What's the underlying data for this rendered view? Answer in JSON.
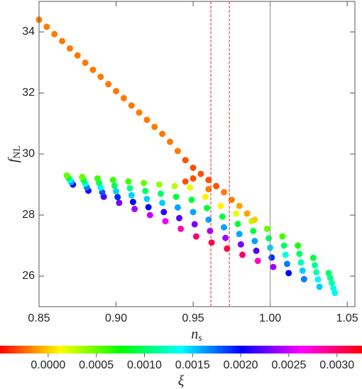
{
  "chart_data": {
    "type": "scatter",
    "xlabel": {
      "text": "n",
      "subscript": "s"
    },
    "ylabel": {
      "text": "f",
      "subscript": "NL"
    },
    "xlim": [
      0.85,
      1.055
    ],
    "ylim": [
      25,
      35
    ],
    "xticks": [
      {
        "value": 0.85,
        "label": "0.85"
      },
      {
        "value": 0.9,
        "label": "0.90"
      },
      {
        "value": 0.95,
        "label": "0.95"
      },
      {
        "value": 1.0,
        "label": "1.00"
      },
      {
        "value": 1.05,
        "label": "1.05"
      }
    ],
    "yticks": [
      26,
      28,
      30,
      32,
      34
    ],
    "reference_lines": [
      {
        "x": 0.9615,
        "color": "#e03030",
        "style": "dashed"
      },
      {
        "x": 0.9735,
        "color": "#e03030",
        "style": "dashed"
      },
      {
        "x": 1.0,
        "color": "#888888",
        "style": "solid"
      }
    ],
    "colormap": "hue",
    "colorbar": {
      "lim": [
        -0.0005,
        0.00326
      ],
      "ticks": [
        {
          "value": 0,
          "label": "0.0000"
        },
        {
          "value": 0.0005,
          "label": "0.0005"
        },
        {
          "value": 0.001,
          "label": "0.0010"
        },
        {
          "value": 0.0015,
          "label": "0.0015"
        },
        {
          "value": 0.002,
          "label": "0.0020"
        },
        {
          "value": 0.0025,
          "label": "0.0025"
        },
        {
          "value": 0.003,
          "label": "0.0030"
        }
      ],
      "label": "ξ"
    },
    "series": [
      {
        "x": [
          0.85,
          0.855,
          0.86,
          0.865,
          0.87,
          0.875,
          0.88,
          0.885,
          0.89,
          0.895,
          0.9,
          0.905,
          0.91,
          0.915,
          0.92,
          0.925,
          0.93,
          0.935,
          0.94,
          0.945,
          0.95,
          0.95,
          0.955,
          0.96,
          0.96,
          0.965,
          0.97,
          0.975,
          0.98,
          0.945,
          0.985,
          0.99,
          0.868,
          0.869,
          0.87,
          0.871,
          0.872,
          0.878,
          0.879,
          0.88,
          0.881,
          0.882,
          0.888,
          0.889,
          0.89,
          0.891,
          0.892,
          0.898,
          0.899,
          0.9,
          0.901,
          0.902,
          0.908,
          0.909,
          0.91,
          0.911,
          0.912,
          0.918,
          0.919,
          0.92,
          0.921,
          0.922,
          0.928,
          0.929,
          0.93,
          0.931,
          0.932,
          0.938,
          0.939,
          0.94,
          0.941,
          0.942,
          0.948,
          0.949,
          0.95,
          0.951,
          0.952,
          0.958,
          0.959,
          0.96,
          0.961,
          0.962,
          0.968,
          0.969,
          0.97,
          0.971,
          0.972,
          0.978,
          0.979,
          0.98,
          0.981,
          0.982,
          0.988,
          0.989,
          0.99,
          0.991,
          0.992,
          0.998,
          0.999,
          1.0,
          1.001,
          1.002,
          1.008,
          1.009,
          1.01,
          1.011,
          1.012,
          1.018,
          1.019,
          1.02,
          1.021,
          1.022,
          1.028,
          1.029,
          1.03,
          1.031,
          1.032,
          1.038,
          1.039,
          1.04,
          1.041,
          1.042
        ],
        "values": [
          34.4,
          34.17,
          33.93,
          33.7,
          33.46,
          33.23,
          32.99,
          32.76,
          32.53,
          32.29,
          32.06,
          31.83,
          31.59,
          31.36,
          31.12,
          30.89,
          30.66,
          30.4,
          30.1,
          29.8,
          29.55,
          29.2,
          29.35,
          29.15,
          28.85,
          28.95,
          28.75,
          28.5,
          28.3,
          29.1,
          28.05,
          27.85,
          29.3,
          29.23,
          29.15,
          29.08,
          29.0,
          29.25,
          29.14,
          29.03,
          28.91,
          28.8,
          29.2,
          29.05,
          28.9,
          28.75,
          28.6,
          29.15,
          28.96,
          28.78,
          28.59,
          28.4,
          29.1,
          28.88,
          28.65,
          28.43,
          28.2,
          29.05,
          28.79,
          28.53,
          28.26,
          28.0,
          29.0,
          28.7,
          28.4,
          28.1,
          27.8,
          28.95,
          28.6,
          28.25,
          27.9,
          27.55,
          28.9,
          28.5,
          28.1,
          27.7,
          27.3,
          28.6,
          28.23,
          27.85,
          27.48,
          27.1,
          28.3,
          27.95,
          27.6,
          27.25,
          26.9,
          28.05,
          27.71,
          27.38,
          27.04,
          26.7,
          27.8,
          27.48,
          27.15,
          26.83,
          26.5,
          27.55,
          27.24,
          26.93,
          26.61,
          26.3,
          27.3,
          27.0,
          26.7,
          26.4,
          26.1,
          27.0,
          26.73,
          26.45,
          26.18,
          25.9,
          26.6,
          26.36,
          26.13,
          25.89,
          25.65,
          26.1,
          25.94,
          25.78,
          25.61,
          25.45
        ],
        "xi": [
          -0.0002,
          -0.0002,
          -0.0002,
          -0.0002,
          -0.0002,
          -0.0002,
          -0.0002,
          -0.0002,
          -0.0002,
          -0.0002,
          -0.0002,
          -0.0002,
          -0.0002,
          -0.0002,
          -0.0002,
          -0.0002,
          -0.0002,
          -0.0002,
          -0.0002,
          -0.0003,
          -0.0003,
          -0.0003,
          -0.0003,
          -0.0003,
          -0.0002,
          -0.0003,
          -0.0002,
          -0.0002,
          -0.0001,
          -0.0003,
          -0.0001,
          0,
          0.0005,
          0.0009,
          0.0013,
          0.0016,
          0.002,
          0.0005,
          0.0009,
          0.0013,
          0.0017,
          0.0021,
          0.0006,
          0.001,
          0.0014,
          0.0018,
          0.0022,
          0.0006,
          0.001,
          0.0015,
          0.0019,
          0.0023,
          0.0006,
          0.0011,
          0.0015,
          0.002,
          0.0024,
          0.0005,
          0.001,
          0.0015,
          0.002,
          0.0025,
          0.0004,
          0.001,
          0.0015,
          0.0021,
          0.0026,
          0.0003,
          0.0009,
          0.0016,
          0.0022,
          0.0028,
          0.0002,
          0.0009,
          0.0016,
          0.0023,
          0.003,
          0.0001,
          0.0009,
          0.0016,
          0.0024,
          0.0031,
          0.0001,
          0.0009,
          0.0016,
          0.0024,
          0.0031,
          0.0002,
          0.0009,
          0.0016,
          0.0023,
          0.003,
          0.0003,
          0.0009,
          0.0016,
          0.0022,
          0.0028,
          0.0005,
          0.001,
          0.0015,
          0.0019,
          0.0024,
          0.0006,
          0.001,
          0.0013,
          0.0017,
          0.002,
          0.0007,
          0.001,
          0.0012,
          0.0015,
          0.0017,
          0.0009,
          0.0011,
          0.0012,
          0.0014,
          0.0015,
          0.001,
          0.0011,
          0.0012,
          0.0013,
          0.0014
        ]
      }
    ]
  }
}
